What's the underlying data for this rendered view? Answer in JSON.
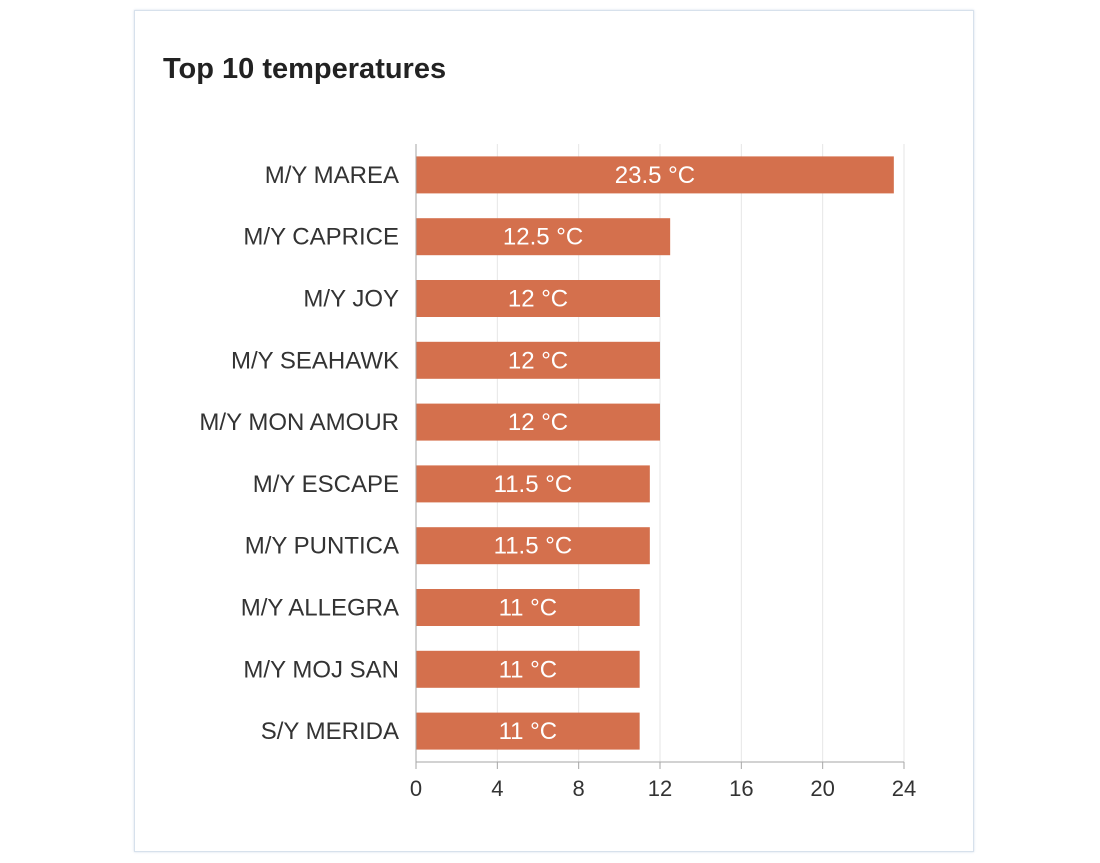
{
  "card": {
    "title": "Top 10 temperatures"
  },
  "chart_data": {
    "type": "bar",
    "orientation": "horizontal",
    "title": "Top 10 temperatures",
    "categories": [
      "M/Y MAREA",
      "M/Y CAPRICE",
      "M/Y JOY",
      "M/Y SEAHAWK",
      "M/Y MON AMOUR",
      "M/Y ESCAPE",
      "M/Y PUNTICA",
      "M/Y ALLEGRA",
      "M/Y MOJ SAN",
      "S/Y MERIDA"
    ],
    "values": [
      23.5,
      12.5,
      12,
      12,
      12,
      11.5,
      11.5,
      11,
      11,
      11
    ],
    "data_labels": [
      "23.5 °C",
      "12.5 °C",
      "12 °C",
      "12 °C",
      "12 °C",
      "11.5 °C",
      "11.5 °C",
      "11 °C",
      "11 °C",
      "11 °C"
    ],
    "xlim": [
      0,
      24
    ],
    "xticks": [
      0,
      4,
      8,
      12,
      16,
      20,
      24
    ],
    "grid": true,
    "colors": {
      "bar": "#d4704d",
      "grid": "#e6e6e6",
      "axis": "#a6a6a6"
    }
  }
}
